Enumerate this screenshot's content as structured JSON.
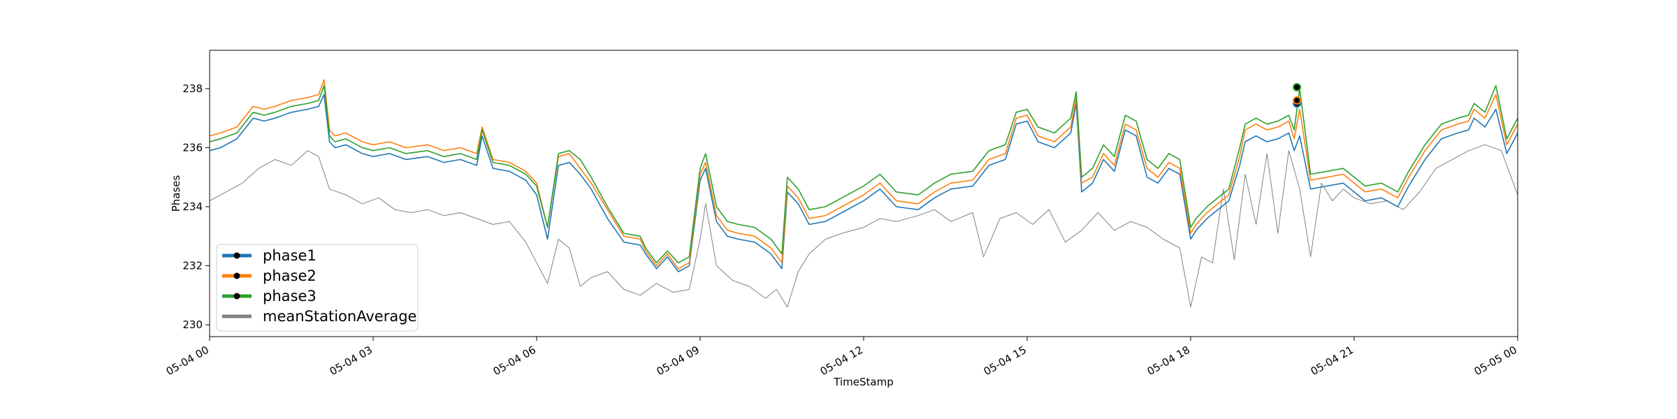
{
  "chart_data": {
    "type": "line",
    "xlabel": "TimeStamp",
    "ylabel": "Phases",
    "xlim": [
      0,
      24
    ],
    "ylim": [
      229.6,
      239.3
    ],
    "grid": false,
    "legend_placement": "lower-left",
    "x_ticks": [
      {
        "value": 0,
        "label": "05-04 00"
      },
      {
        "value": 3,
        "label": "05-04 03"
      },
      {
        "value": 6,
        "label": "05-04 06"
      },
      {
        "value": 9,
        "label": "05-04 09"
      },
      {
        "value": 12,
        "label": "05-04 12"
      },
      {
        "value": 15,
        "label": "05-04 15"
      },
      {
        "value": 18,
        "label": "05-04 18"
      },
      {
        "value": 21,
        "label": "05-04 21"
      },
      {
        "value": 24,
        "label": "05-05 00"
      }
    ],
    "y_ticks": [
      {
        "value": 230,
        "label": "230"
      },
      {
        "value": 232,
        "label": "232"
      },
      {
        "value": 234,
        "label": "234"
      },
      {
        "value": 236,
        "label": "236"
      },
      {
        "value": 238,
        "label": "238"
      }
    ],
    "series": [
      {
        "name": "phase1",
        "color": "#1f77b4",
        "x": [
          0,
          0.2,
          0.5,
          0.8,
          1.0,
          1.2,
          1.5,
          1.8,
          2.0,
          2.1,
          2.2,
          2.3,
          2.5,
          2.8,
          3.0,
          3.3,
          3.6,
          4.0,
          4.3,
          4.6,
          4.9,
          5.0,
          5.2,
          5.5,
          5.8,
          6.0,
          6.2,
          6.4,
          6.6,
          6.8,
          7.0,
          7.3,
          7.6,
          7.9,
          8.0,
          8.2,
          8.4,
          8.6,
          8.8,
          9.0,
          9.1,
          9.3,
          9.5,
          9.7,
          10.0,
          10.3,
          10.5,
          10.6,
          10.8,
          11.0,
          11.3,
          11.6,
          12.0,
          12.3,
          12.6,
          13.0,
          13.3,
          13.6,
          14.0,
          14.3,
          14.6,
          14.8,
          15.0,
          15.2,
          15.5,
          15.8,
          15.9,
          16.0,
          16.2,
          16.4,
          16.6,
          16.8,
          17.0,
          17.2,
          17.4,
          17.6,
          17.8,
          18.0,
          18.1,
          18.3,
          18.5,
          18.7,
          18.9,
          19.0,
          19.2,
          19.4,
          19.6,
          19.8,
          19.9,
          20.0,
          20.2,
          20.5,
          20.8,
          21.0,
          21.2,
          21.5,
          21.8,
          22.0,
          22.3,
          22.6,
          22.9,
          23.1,
          23.2,
          23.4,
          23.6,
          23.8,
          24.0
        ],
        "y": [
          235.9,
          236.0,
          236.3,
          237.0,
          236.9,
          237.0,
          237.2,
          237.3,
          237.4,
          237.8,
          236.2,
          236.0,
          236.1,
          235.8,
          235.7,
          235.8,
          235.6,
          235.7,
          235.5,
          235.6,
          235.4,
          236.4,
          235.3,
          235.2,
          234.9,
          234.4,
          232.9,
          235.4,
          235.5,
          235.1,
          234.6,
          233.6,
          232.8,
          232.7,
          232.4,
          231.9,
          232.3,
          231.8,
          232.0,
          234.9,
          235.3,
          233.5,
          233.0,
          232.9,
          232.8,
          232.4,
          231.9,
          234.5,
          234.1,
          233.4,
          233.5,
          233.8,
          234.2,
          234.6,
          234.0,
          233.9,
          234.3,
          234.6,
          234.7,
          235.4,
          235.6,
          236.8,
          236.9,
          236.2,
          236.0,
          236.5,
          237.5,
          234.5,
          234.8,
          235.6,
          235.2,
          236.6,
          236.4,
          235.0,
          234.8,
          235.3,
          235.1,
          232.9,
          233.2,
          233.6,
          233.9,
          234.2,
          235.4,
          236.2,
          236.4,
          236.2,
          236.3,
          236.5,
          235.9,
          236.4,
          234.6,
          234.7,
          234.8,
          234.5,
          234.2,
          234.3,
          234.0,
          234.7,
          235.6,
          236.3,
          236.5,
          236.6,
          237.0,
          236.7,
          237.3,
          235.8,
          236.5
        ]
      },
      {
        "name": "phase2",
        "color": "#ff7f0e",
        "x": [
          0,
          0.2,
          0.5,
          0.8,
          1.0,
          1.2,
          1.5,
          1.8,
          2.0,
          2.1,
          2.2,
          2.3,
          2.5,
          2.8,
          3.0,
          3.3,
          3.6,
          4.0,
          4.3,
          4.6,
          4.9,
          5.0,
          5.2,
          5.5,
          5.8,
          6.0,
          6.2,
          6.4,
          6.6,
          6.8,
          7.0,
          7.3,
          7.6,
          7.9,
          8.0,
          8.2,
          8.4,
          8.6,
          8.8,
          9.0,
          9.1,
          9.3,
          9.5,
          9.7,
          10.0,
          10.3,
          10.5,
          10.6,
          10.8,
          11.0,
          11.3,
          11.6,
          12.0,
          12.3,
          12.6,
          13.0,
          13.3,
          13.6,
          14.0,
          14.3,
          14.6,
          14.8,
          15.0,
          15.2,
          15.5,
          15.8,
          15.9,
          16.0,
          16.2,
          16.4,
          16.6,
          16.8,
          17.0,
          17.2,
          17.4,
          17.6,
          17.8,
          18.0,
          18.1,
          18.3,
          18.5,
          18.7,
          18.9,
          19.0,
          19.2,
          19.4,
          19.6,
          19.8,
          19.9,
          20.0,
          20.2,
          20.5,
          20.8,
          21.0,
          21.2,
          21.5,
          21.8,
          22.0,
          22.3,
          22.6,
          22.9,
          23.1,
          23.2,
          23.4,
          23.6,
          23.8,
          24.0
        ],
        "y": [
          236.4,
          236.5,
          236.7,
          237.4,
          237.3,
          237.4,
          237.6,
          237.7,
          237.8,
          238.3,
          236.6,
          236.4,
          236.5,
          236.2,
          236.1,
          236.2,
          236.0,
          236.1,
          235.9,
          236.0,
          235.8,
          236.7,
          235.6,
          235.5,
          235.2,
          234.8,
          233.3,
          235.7,
          235.8,
          235.3,
          234.8,
          233.9,
          233.0,
          232.9,
          232.5,
          232.0,
          232.4,
          231.9,
          232.1,
          235.1,
          235.5,
          233.7,
          233.2,
          233.1,
          233.0,
          232.6,
          232.1,
          234.7,
          234.3,
          233.6,
          233.7,
          234.0,
          234.4,
          234.8,
          234.2,
          234.1,
          234.5,
          234.8,
          234.9,
          235.6,
          235.8,
          237.0,
          237.1,
          236.4,
          236.2,
          236.7,
          237.7,
          234.8,
          235.0,
          235.8,
          235.4,
          236.8,
          236.6,
          235.3,
          235.0,
          235.5,
          235.3,
          233.1,
          233.4,
          233.8,
          234.1,
          234.4,
          235.7,
          236.6,
          236.8,
          236.6,
          236.7,
          236.9,
          236.3,
          237.3,
          234.9,
          235.0,
          235.1,
          234.8,
          234.5,
          234.6,
          234.3,
          235.0,
          235.9,
          236.6,
          236.8,
          236.9,
          237.3,
          237.0,
          237.8,
          236.1,
          236.8
        ]
      },
      {
        "name": "phase3",
        "color": "#2ca02c",
        "x": [
          0,
          0.2,
          0.5,
          0.8,
          1.0,
          1.2,
          1.5,
          1.8,
          2.0,
          2.1,
          2.2,
          2.3,
          2.5,
          2.8,
          3.0,
          3.3,
          3.6,
          4.0,
          4.3,
          4.6,
          4.9,
          5.0,
          5.2,
          5.5,
          5.8,
          6.0,
          6.2,
          6.4,
          6.6,
          6.8,
          7.0,
          7.3,
          7.6,
          7.9,
          8.0,
          8.2,
          8.4,
          8.6,
          8.8,
          9.0,
          9.1,
          9.3,
          9.5,
          9.7,
          10.0,
          10.3,
          10.5,
          10.6,
          10.8,
          11.0,
          11.3,
          11.6,
          12.0,
          12.3,
          12.6,
          13.0,
          13.3,
          13.6,
          14.0,
          14.3,
          14.6,
          14.8,
          15.0,
          15.2,
          15.5,
          15.8,
          15.9,
          16.0,
          16.2,
          16.4,
          16.6,
          16.8,
          17.0,
          17.2,
          17.4,
          17.6,
          17.8,
          18.0,
          18.1,
          18.3,
          18.5,
          18.7,
          18.9,
          19.0,
          19.2,
          19.4,
          19.6,
          19.8,
          19.9,
          20.0,
          20.2,
          20.5,
          20.8,
          21.0,
          21.2,
          21.5,
          21.8,
          22.0,
          22.3,
          22.6,
          22.9,
          23.1,
          23.2,
          23.4,
          23.6,
          23.8,
          24.0
        ],
        "y": [
          236.2,
          236.3,
          236.5,
          237.2,
          237.1,
          237.2,
          237.4,
          237.5,
          237.6,
          238.1,
          236.4,
          236.2,
          236.3,
          236.0,
          235.9,
          236.0,
          235.8,
          235.9,
          235.7,
          235.8,
          235.6,
          236.6,
          235.5,
          235.4,
          235.1,
          234.7,
          233.3,
          235.8,
          235.9,
          235.6,
          235.0,
          234.0,
          233.1,
          233.0,
          232.6,
          232.1,
          232.5,
          232.1,
          232.3,
          235.3,
          235.8,
          234.0,
          233.5,
          233.4,
          233.3,
          232.9,
          232.4,
          235.0,
          234.6,
          233.9,
          234.0,
          234.3,
          234.7,
          235.1,
          234.5,
          234.4,
          234.8,
          235.1,
          235.2,
          235.9,
          236.1,
          237.2,
          237.3,
          236.7,
          236.5,
          237.0,
          237.9,
          235.0,
          235.3,
          236.1,
          235.7,
          237.1,
          236.9,
          235.6,
          235.3,
          235.8,
          235.6,
          233.3,
          233.6,
          234.0,
          234.3,
          234.6,
          236.0,
          236.8,
          237.0,
          236.8,
          236.9,
          237.1,
          236.6,
          238.0,
          235.1,
          235.2,
          235.3,
          235.0,
          234.7,
          234.8,
          234.5,
          235.2,
          236.1,
          236.8,
          237.0,
          237.1,
          237.5,
          237.2,
          238.1,
          236.3,
          237.0
        ]
      },
      {
        "name": "meanStationAverage",
        "color": "#808080",
        "x": [
          0,
          0.3,
          0.6,
          0.9,
          1.2,
          1.5,
          1.8,
          2.0,
          2.2,
          2.5,
          2.8,
          3.1,
          3.4,
          3.7,
          4.0,
          4.3,
          4.6,
          4.9,
          5.2,
          5.5,
          5.8,
          6.0,
          6.2,
          6.4,
          6.6,
          6.8,
          7.0,
          7.3,
          7.6,
          7.9,
          8.2,
          8.5,
          8.8,
          9.0,
          9.1,
          9.3,
          9.6,
          9.9,
          10.2,
          10.4,
          10.6,
          10.8,
          11.0,
          11.3,
          11.6,
          12.0,
          12.3,
          12.6,
          13.0,
          13.3,
          13.6,
          14.0,
          14.2,
          14.5,
          14.8,
          15.1,
          15.4,
          15.7,
          16.0,
          16.3,
          16.6,
          16.9,
          17.2,
          17.5,
          17.8,
          18.0,
          18.2,
          18.4,
          18.6,
          18.8,
          19.0,
          19.2,
          19.4,
          19.6,
          19.8,
          20.0,
          20.2,
          20.4,
          20.6,
          20.8,
          21.0,
          21.3,
          21.6,
          21.9,
          22.2,
          22.5,
          22.8,
          23.1,
          23.4,
          23.7,
          24.0
        ],
        "y": [
          234.2,
          234.5,
          234.8,
          235.3,
          235.6,
          235.4,
          235.9,
          235.7,
          234.6,
          234.4,
          234.1,
          234.3,
          233.9,
          233.8,
          233.9,
          233.7,
          233.8,
          233.6,
          233.4,
          233.5,
          232.8,
          232.1,
          231.4,
          232.9,
          232.6,
          231.3,
          231.6,
          231.8,
          231.2,
          231.0,
          231.4,
          231.1,
          231.2,
          232.9,
          234.1,
          232.0,
          231.5,
          231.3,
          230.9,
          231.2,
          230.6,
          231.8,
          232.4,
          232.9,
          233.1,
          233.3,
          233.6,
          233.5,
          233.7,
          233.9,
          233.5,
          233.8,
          232.3,
          233.6,
          233.8,
          233.4,
          233.9,
          232.8,
          233.2,
          233.8,
          233.2,
          233.5,
          233.3,
          232.9,
          232.6,
          230.6,
          232.3,
          232.1,
          234.6,
          232.2,
          235.1,
          233.4,
          235.8,
          233.1,
          235.9,
          234.6,
          232.3,
          234.8,
          234.2,
          234.6,
          234.3,
          234.1,
          234.2,
          233.9,
          234.5,
          235.3,
          235.6,
          235.9,
          236.1,
          235.9,
          234.4
        ]
      }
    ],
    "markers": [
      {
        "series": "phase1",
        "x": 19.95,
        "y": 237.5
      },
      {
        "series": "phase2",
        "x": 19.95,
        "y": 237.6
      },
      {
        "series": "phase3",
        "x": 19.95,
        "y": 238.05
      }
    ],
    "legend": [
      {
        "label": "phase1",
        "color": "#1f77b4",
        "marker": true
      },
      {
        "label": "phase2",
        "color": "#ff7f0e",
        "marker": true
      },
      {
        "label": "phase3",
        "color": "#2ca02c",
        "marker": true
      },
      {
        "label": "meanStationAverage",
        "color": "#808080",
        "marker": false
      }
    ]
  }
}
